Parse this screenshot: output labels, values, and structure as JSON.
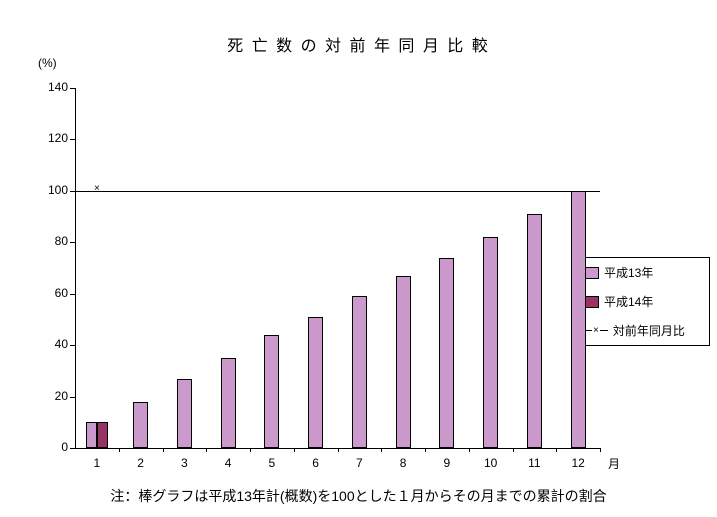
{
  "chart_data": {
    "type": "bar",
    "title": "死 亡 数 の 対 前 年 同 月 比 較",
    "ylabel": "(%)",
    "x_unit_label": "月",
    "categories": [
      "1",
      "2",
      "3",
      "4",
      "5",
      "6",
      "7",
      "8",
      "9",
      "10",
      "11",
      "12"
    ],
    "series": [
      {
        "name": "平成13年",
        "color": "#cc99cc",
        "values": [
          10,
          18,
          27,
          35,
          44,
          51,
          59,
          67,
          74,
          82,
          91,
          100
        ]
      },
      {
        "name": "平成14年",
        "color": "#993366",
        "values": [
          10,
          null,
          null,
          null,
          null,
          null,
          null,
          null,
          null,
          null,
          null,
          null
        ]
      }
    ],
    "line_series": {
      "name": "対前年同月比",
      "marker": "×",
      "color": "#000000",
      "values": [
        100,
        null,
        null,
        null,
        null,
        null,
        null,
        null,
        null,
        null,
        null,
        null
      ],
      "reference_line_y": 100
    },
    "ylim": [
      0,
      140
    ],
    "ytick_step": 20,
    "legend_position": "right",
    "grid": false
  },
  "note": "注：棒グラフは平成13年計(概数)を100とした１月からその月までの累計の割合"
}
